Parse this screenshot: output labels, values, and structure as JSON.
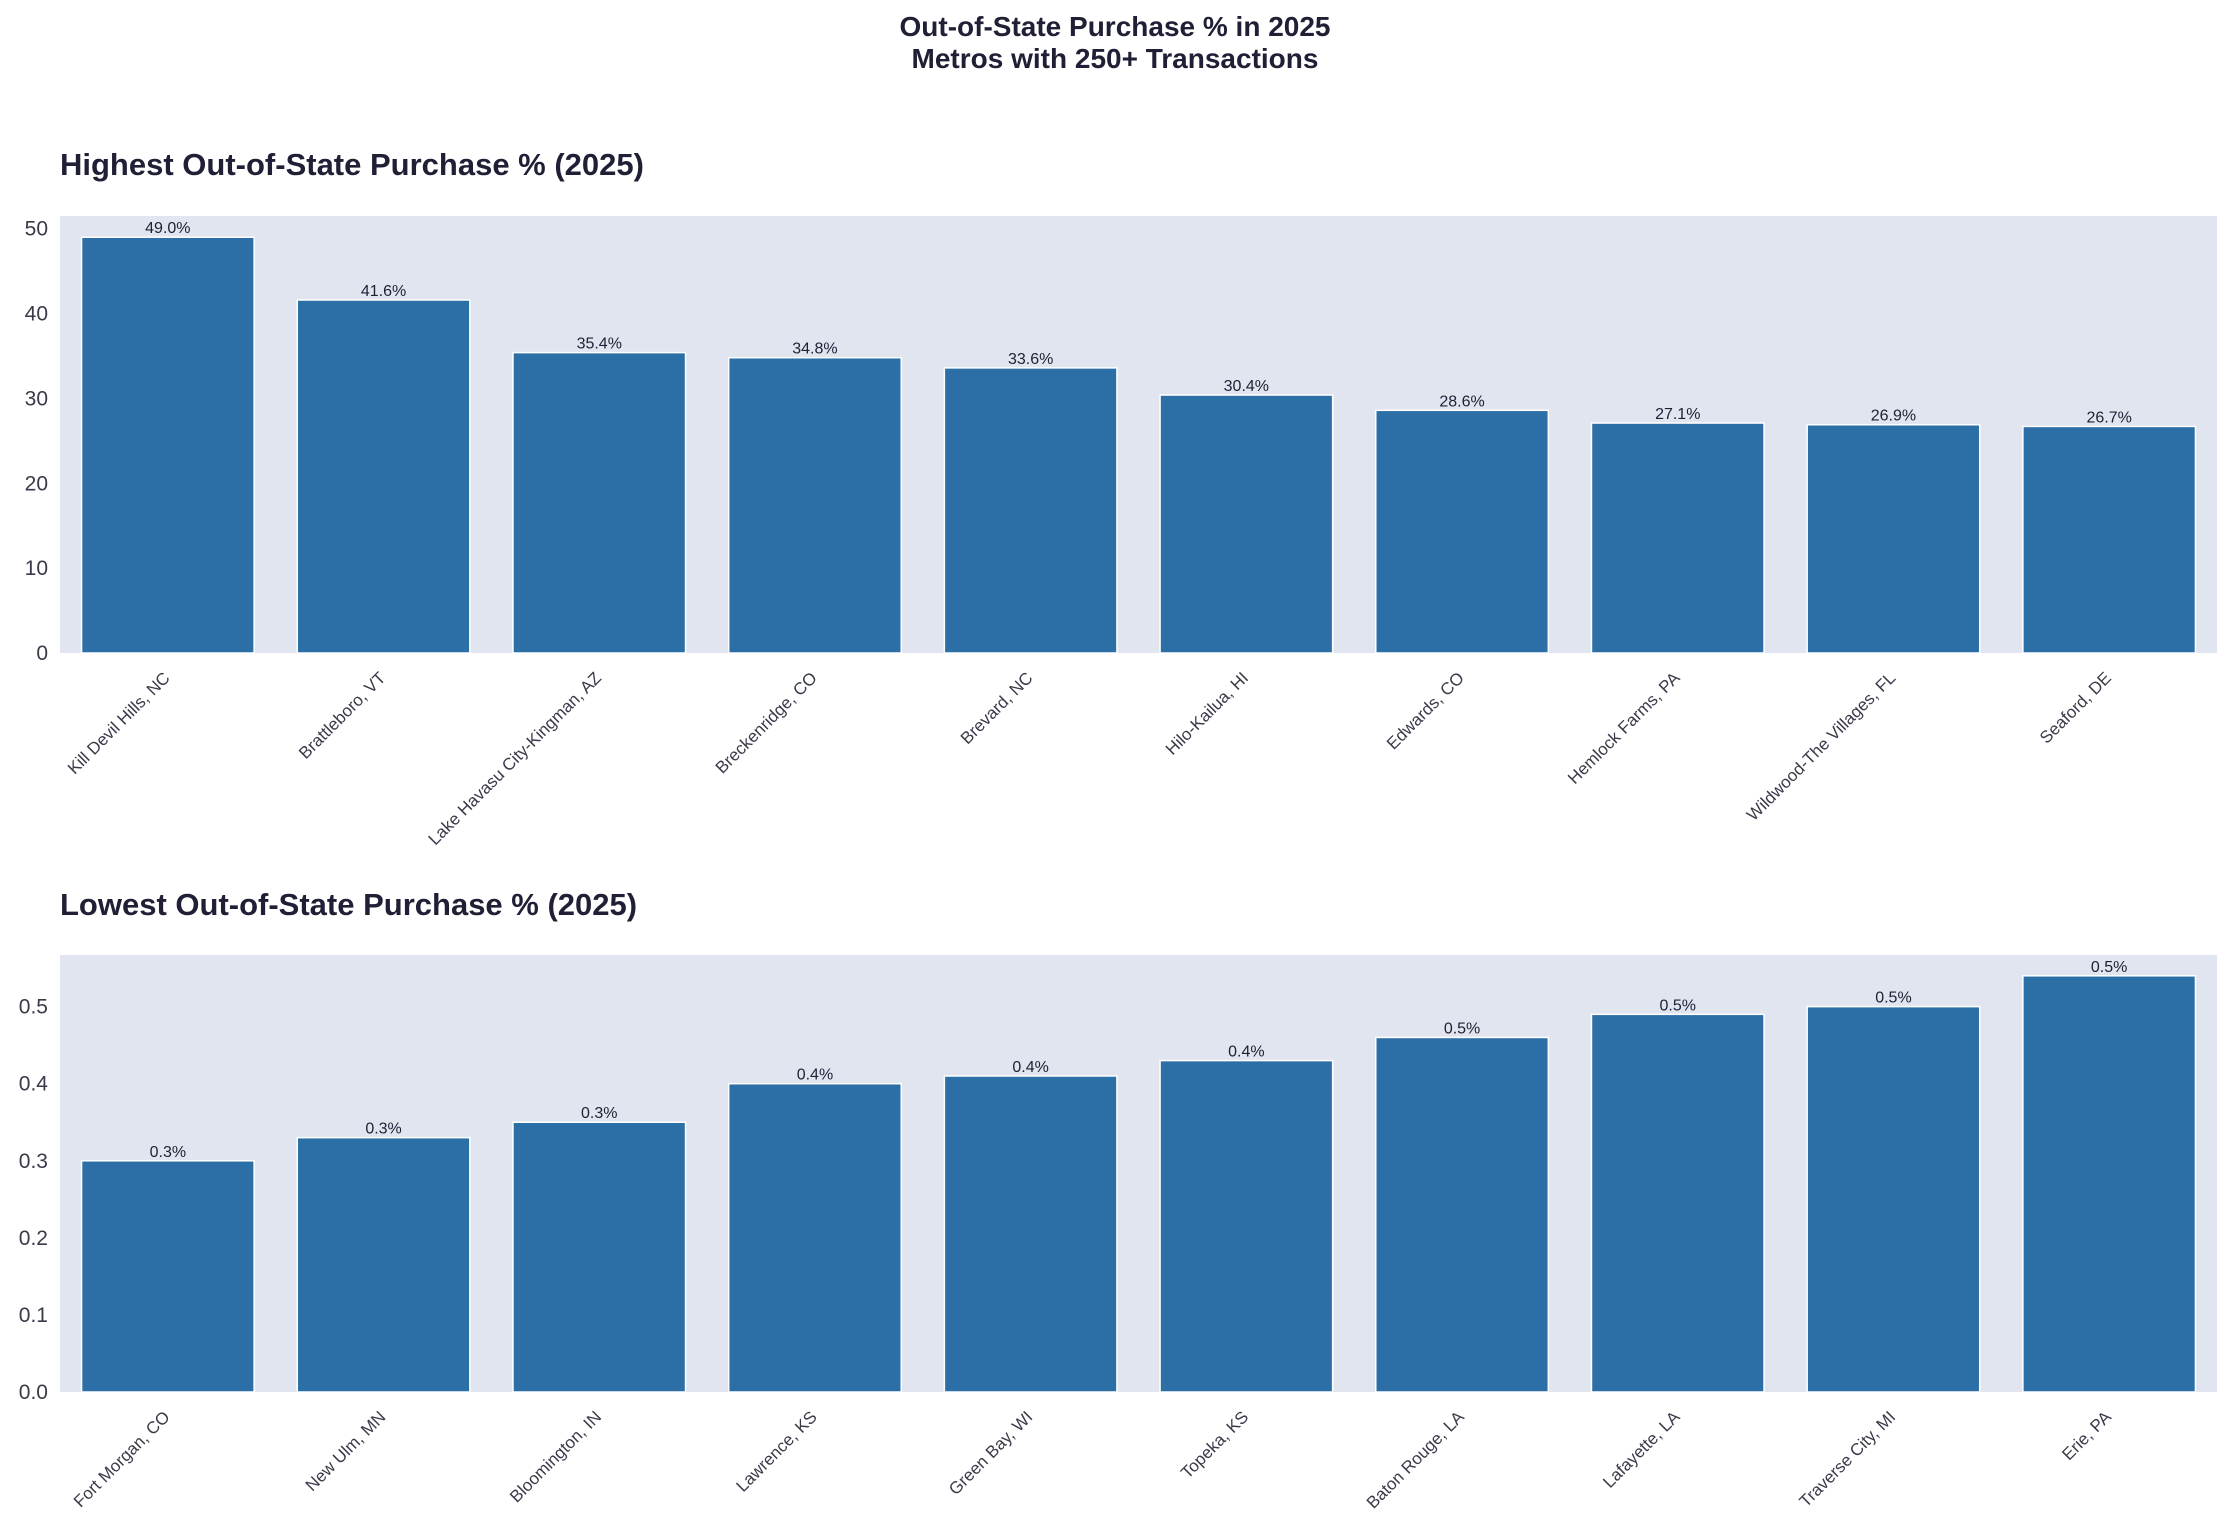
{
  "suptitle_line1": "Out-of-State Purchase % in 2025",
  "suptitle_line2": "Metros with 250+ Transactions",
  "colors": {
    "bar": "#2b6fa6",
    "plot_bg": "#e1e5f0",
    "text": "#1f1f35"
  },
  "chart_data": [
    {
      "type": "bar",
      "title": "Highest Out-of-State Purchase % (2025)",
      "xlabel": "",
      "ylabel": "",
      "ylim": [
        0,
        51.5
      ],
      "yticks": [
        0,
        10,
        20,
        30,
        40,
        50
      ],
      "ytick_labels": [
        "0",
        "10",
        "20",
        "30",
        "40",
        "50"
      ],
      "grid": false,
      "categories": [
        "Kill Devil Hills, NC",
        "Brattleboro, VT",
        "Lake Havasu City-Kingman, AZ",
        "Breckenridge, CO",
        "Brevard, NC",
        "Hilo-Kailua, HI",
        "Edwards, CO",
        "Hemlock Farms, PA",
        "Wildwood-The Villages, FL",
        "Seaford, DE"
      ],
      "values": [
        49.0,
        41.6,
        35.4,
        34.8,
        33.6,
        30.4,
        28.6,
        27.1,
        26.9,
        26.7
      ],
      "value_labels": [
        "49.0%",
        "41.6%",
        "35.4%",
        "34.8%",
        "33.6%",
        "30.4%",
        "28.6%",
        "27.1%",
        "26.9%",
        "26.7%"
      ]
    },
    {
      "type": "bar",
      "title": "Lowest Out-of-State Purchase % (2025)",
      "xlabel": "",
      "ylabel": "",
      "ylim": [
        0,
        0.567
      ],
      "yticks": [
        0,
        0.1,
        0.2,
        0.3,
        0.4,
        0.5
      ],
      "ytick_labels": [
        "0.0",
        "0.1",
        "0.2",
        "0.3",
        "0.4",
        "0.5"
      ],
      "grid": false,
      "categories": [
        "Fort Morgan, CO",
        "New Ulm, MN",
        "Bloomington, IN",
        "Lawrence, KS",
        "Green Bay, WI",
        "Topeka, KS",
        "Baton Rouge, LA",
        "Lafayette, LA",
        "Traverse City, MI",
        "Erie, PA"
      ],
      "values": [
        0.3,
        0.33,
        0.35,
        0.4,
        0.41,
        0.43,
        0.46,
        0.49,
        0.5,
        0.54
      ],
      "value_labels": [
        "0.3%",
        "0.3%",
        "0.3%",
        "0.4%",
        "0.4%",
        "0.4%",
        "0.5%",
        "0.5%",
        "0.5%",
        "0.5%"
      ]
    }
  ]
}
